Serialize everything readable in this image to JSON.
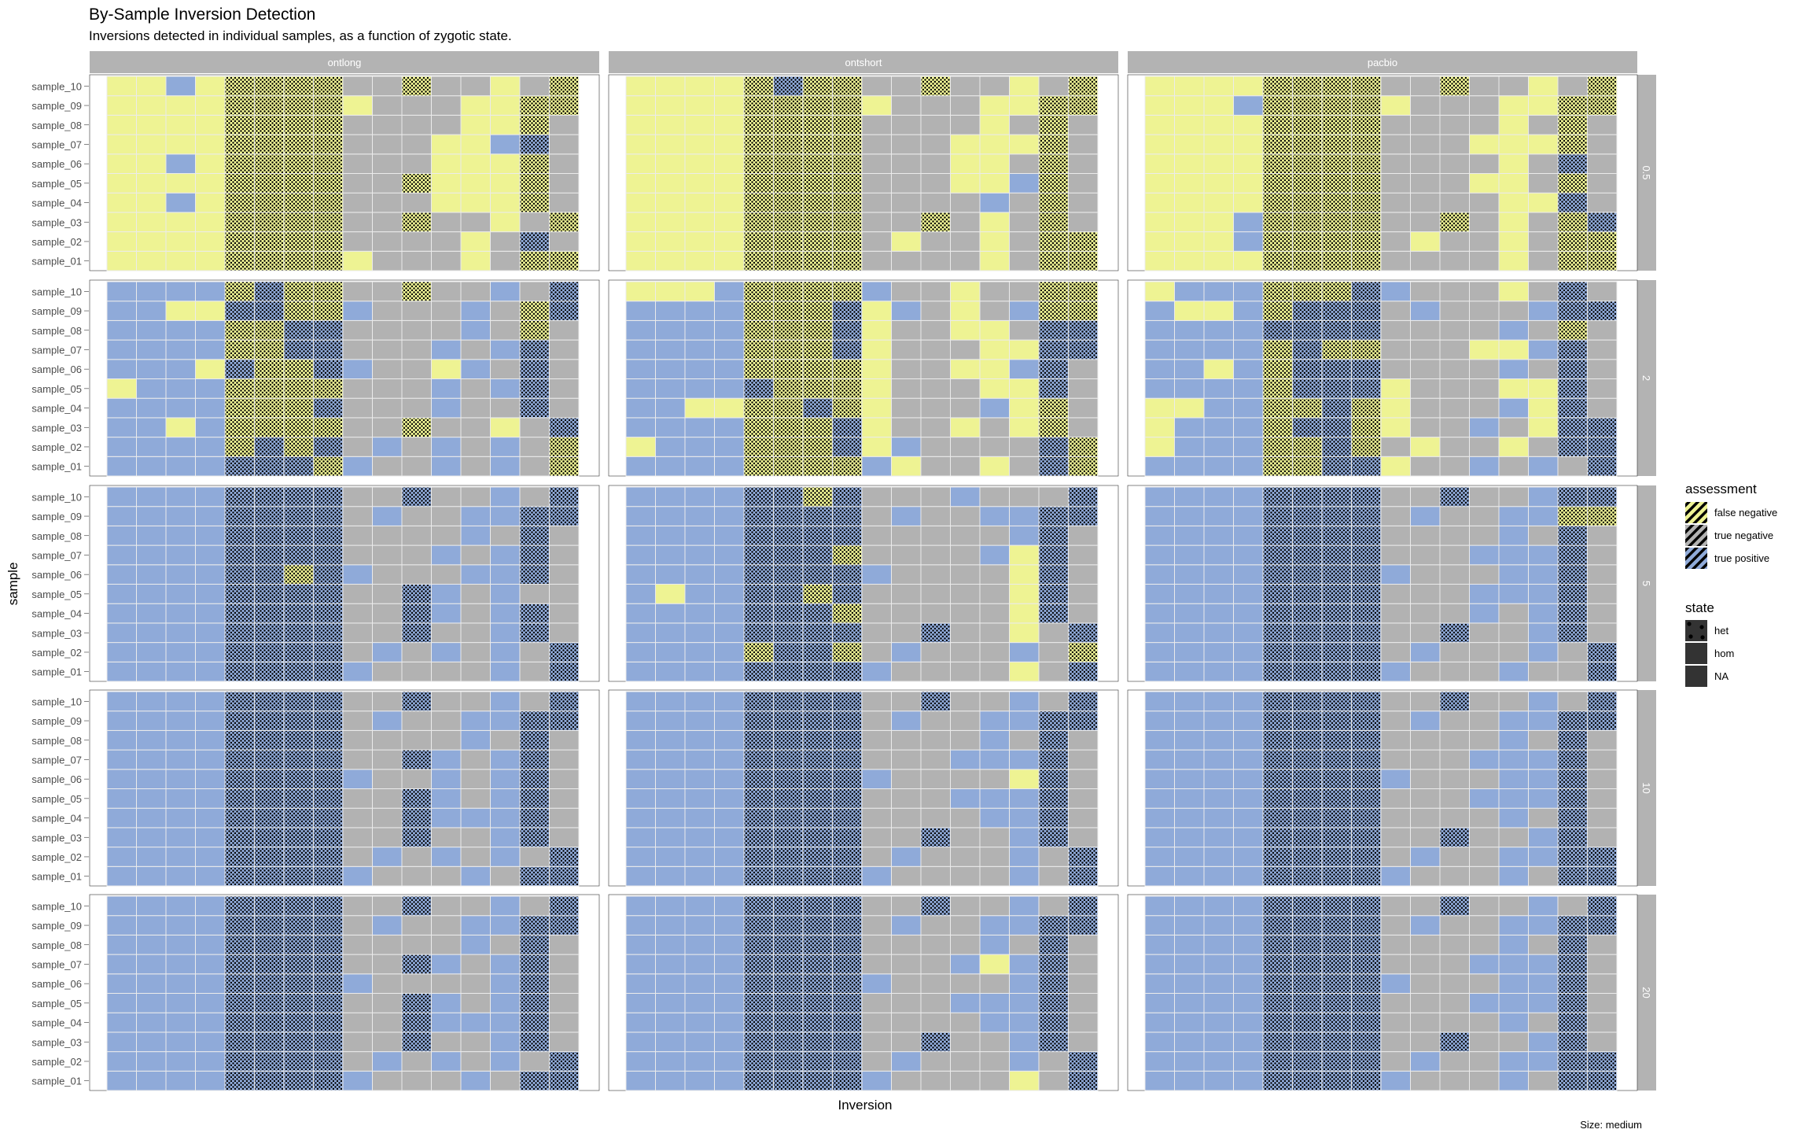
{
  "chart_data": {
    "type": "heatmap",
    "title": "By-Sample Inversion Detection",
    "subtitle": "Inversions detected in individual samples, as a function of zygotic state.",
    "xlabel": "Inversion",
    "ylabel": "sample",
    "caption": "Size: medium",
    "column_facets": [
      "ontlong",
      "ontshort",
      "pacbio"
    ],
    "row_facets": [
      "0.5",
      "2",
      "5",
      "10",
      "20"
    ],
    "samples": [
      "sample_01",
      "sample_02",
      "sample_03",
      "sample_04",
      "sample_05",
      "sample_06",
      "sample_07",
      "sample_08",
      "sample_09",
      "sample_10"
    ],
    "n_inversions": 16,
    "state_per_inversion": [
      "hom",
      "hom",
      "hom",
      "hom",
      "het",
      "het",
      "het",
      "het",
      "hom",
      "hom",
      "het",
      "hom",
      "hom",
      "hom",
      "het",
      "het"
    ],
    "grid_legend": {
      "B": "true positive",
      "Y": "false negative",
      "G": "true negative"
    },
    "legend": {
      "assessment_title": "assessment",
      "assessment": [
        {
          "label": "false negative",
          "color": "#eef393"
        },
        {
          "label": "true negative",
          "color": "#b2b2b2"
        },
        {
          "label": "true positive",
          "color": "#8faad9"
        }
      ],
      "state_title": "state",
      "state": [
        "het",
        "hom",
        "NA"
      ]
    },
    "colors": {
      "true positive": "#8faad9",
      "false negative": "#eef393",
      "true negative": "#b2b2b2",
      "strip": "#b3b3b3",
      "grid": "#ebebeb"
    },
    "panels": {
      "0.5": {
        "ontlong": [
          "YYYYYYYYYGGGYGYY",
          "YYYYYYYYGGGGYGBG",
          "YYYYYYYYGGYGGYGY",
          "YYBYYYYYGGGYYYYG",
          "YYYYYYYYGGYYYYYG",
          "YYBYYYYYGGGYYYYG",
          "YYYYYYYYGGGYYBBG",
          "YYYYYYYYGGGGYYYG",
          "YYYYYYYYYGGGYYYY",
          "YYBYYYYYGGYGGYGY"
        ],
        "ontshort": [
          "YYYYYYYYGGGGYGYY",
          "YYYYYYYYGYGGYGYY",
          "YYYYYYYYGGYGYGYG",
          "YYYYYYYYGGGGBGYG",
          "YYYYYYYYGGGYYBYG",
          "YYYYYYYYGGGYYGYG",
          "YYYYYYYYGGGYYYYG",
          "YYYYYYYYGGGGYGYG",
          "YYYYYYYYYGGGYYYY",
          "YYYYYBYYGGYGGYGY"
        ],
        "pacbio": [
          "YYYYYYYYGGGGYGYY",
          "YYYBYYYYGYGGYGYY",
          "YYYBYYYYGGYGYGYB",
          "YYYYYYYYGGGGYYBG",
          "YYYYYYYYGGGYYGYG",
          "YYYYYYYYGGGGYGBG",
          "YYYYYYYYGGGYYYYG",
          "YYYYYYYYGGGGYGYG",
          "YYYBYYYYYGGGYYYY",
          "YYYYYYYYGGYGGYGY"
        ]
      },
      "2": {
        "ontlong": [
          "BBBBBBBYBGGBGBGY",
          "BBBBYBYBGBGBGBGY",
          "BBYBYYYYGGYGGYGB",
          "BBBBYYYBGGGBGGBG",
          "YBBBYYYYGGGBGBBG",
          "BBBYBYYBBGGYBGBG",
          "BBBBYYBBGGGBGBBG",
          "BBBBYYBBGGGGBGYG",
          "BBYYBBYYBGGGBGYB",
          "BBBBYBYYGGYGGBGB"
        ],
        "ontshort": [
          "BBBBYYYYBYGGYGBY",
          "YBBBYYYBYBGGGGBY",
          "BBBBYYYBYGGYGYYG",
          "BBYYYYBYYGGGBYYG",
          "BBBBBYYYYGGGYYBG",
          "BBBBYYYYYGGYYBBG",
          "BBBBYYYBYGGGYYBB",
          "BBBBYYYBYGGYYGBB",
          "BBBBYYYBYBGYGBYY",
          "YYYBYYYYBGGYGGYY"
        ],
        "pacbio": [
          "BBBBYYBBYGGBGBGB",
          "YBBBYYBYGYGGYGBB",
          "YBBBYBBYYGGBGYBB",
          "YYBBYYBYYGGGBYBG",
          "BBBBYBBBYGGGYYBG",
          "BBYBYBBBGGGGBGBG",
          "BBBBYBYYGGGYYBBG",
          "BBBBBBBBGGGGBGYG",
          "BYYBYBBBGBGGGBBB",
          "YBBBYYYBBGGGYGBG"
        ]
      },
      "5": {
        "ontlong": [
          "BBBBBBBBBGGGGBGB",
          "BBBBBBBBGBGBGBGB",
          "BBBBBBBBGGBGGBBG",
          "BBBBBBBBGGBBGBBG",
          "BBBBBBBBGGBBGBGG",
          "BBBBBBYBBGGGBBBG",
          "BBBBBBBBGGGBGBBG",
          "BBBBBBBBGGGGBGBG",
          "BBBBBBBBGBGGBBBB",
          "BBBBBBBBGGBGGBGB"
        ],
        "ontshort": [
          "BBBBBBBBBGGGGYGB",
          "BBBBYBBYGBGGGBGY",
          "BBBBBBBBGGBGGYGB",
          "BBBBBBBYGGGGGYBG",
          "BYBBBBYBGGGGGYBG",
          "BBBBBBBBBGGGGYBG",
          "BBBBBBBYGGGGBYBG",
          "BBBBBBBBGGGGGBBG",
          "BBBBBBBBGBGGBBBB",
          "BBBBBBYBGGGBGGGB"
        ],
        "pacbio": [
          "BBBBBBBBBGGGBGGB",
          "BBBBBBBBGBGGGBGB",
          "BBBBBBBBGGBGGBBG",
          "BBBBBBBBGGGBGBBG",
          "BBBBBBBBGGGBBBBG",
          "BBBBBBBBBGGGBBBG",
          "BBBBBBBBGGGBBBBG",
          "BBBBBBBBGGGGBGBG",
          "BBBBBBBBGBGGBBYY",
          "BBBBBBBBGGBGGBBB"
        ]
      },
      "10": {
        "ontlong": [
          "BBBBBBBBBGGGBGBB",
          "BBBBBBBBGBGBGBGB",
          "BBBBBBBBGGBGGBBG",
          "BBBBBBBBGGBBBBBG",
          "BBBBBBBBGGBBGBBG",
          "BBBBBBBBBGGBGBBG",
          "BBBBBBBBGGBBGBBG",
          "BBBBBBBBGGGGBGBG",
          "BBBBBBBBGBGGBBBB",
          "BBBBBBBBGGBGGBGB"
        ],
        "ontshort": [
          "BBBBBBBBBGGGGBGB",
          "BBBBBBBBGBGGGBGB",
          "BBBBBBBBGGBGGBBG",
          "BBBBBBBBGGGGBBBG",
          "BBBBBBBBGGGBBBBG",
          "BBBBBBBBBGGGGYBG",
          "BBBBBBBBGGGBBBBG",
          "BBBBBBBBGGGGBGBG",
          "BBBBBBBBGBGGBBBB",
          "BBBBBBBBGGBGGBGB"
        ],
        "pacbio": [
          "BBBBBBBBBGGGBGBB",
          "BBBBBBBBGBGGBBBB",
          "BBBBBBBBGGBGGBBG",
          "BBBBBBBBGGGGBGBG",
          "BBBBBBBBGGGBBBBG",
          "BBBBBBBBBGGGBBBG",
          "BBBBBBBBGGGBBBBG",
          "BBBBBBBBGGGGBGBG",
          "BBBBBBBBGBGGBBBB",
          "BBBBBBBBGGBGGBGB"
        ]
      },
      "20": {
        "ontlong": [
          "BBBBBBBBBGGGBGBB",
          "BBBBBBBBGBGBGBGB",
          "BBBBBBBBGGBGGBBG",
          "BBBBBBBBGGBBBBBG",
          "BBBBBBBBGGBBGBBG",
          "BBBBBBBBBGGGGBBG",
          "BBBBBBBBGGBBGBBG",
          "BBBBBBBBGGGGBGBG",
          "BBBBBBBBGBGGBBBB",
          "BBBBBBBBGGBGGBGB"
        ],
        "ontshort": [
          "BBBBBBBBBGGGGYGB",
          "BBBBBBBBGBGGGBGB",
          "BBBBBBBBGGBGGBBG",
          "BBBBBBBBGGGGBBBG",
          "BBBBBBBBGGGBBBBG",
          "BBBBBBBBBGGGGBBG",
          "BBBBBBBBGGGBYBBG",
          "BBBBBBBBGGGGBGBG",
          "BBBBBBBBGBGGBBBB",
          "BBBBBBBBGGBGGBGB"
        ],
        "pacbio": [
          "BBBBBBBBBGGGBGBB",
          "BBBBBBBBGBGGBBBB",
          "BBBBBBBBGGBGGBBG",
          "BBBBBBBBGGGGBGBG",
          "BBBBBBBBGGGBBBBG",
          "BBBBBBBBBGGGBBBG",
          "BBBBBBBBGGGBBBBG",
          "BBBBBBBBGGGGBGBG",
          "BBBBBBBBGBGGBBBB",
          "BBBBBBBBGGBGGBGB"
        ]
      }
    }
  }
}
